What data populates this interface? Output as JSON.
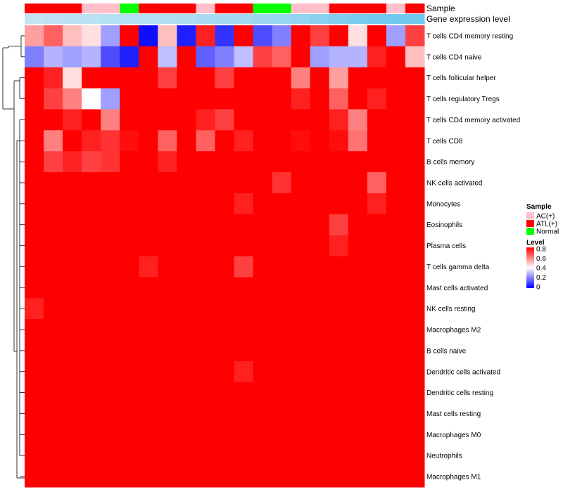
{
  "chart_data": {
    "type": "heatmap",
    "annotations": {
      "sample": {
        "label": "Sample",
        "values": [
          "ATL(+)",
          "ATL(+)",
          "ATL(+)",
          "AC(+)",
          "AC(+)",
          "Normal",
          "ATL(+)",
          "ATL(+)",
          "ATL(+)",
          "AC(+)",
          "ATL(+)",
          "ATL(+)",
          "Normal",
          "Normal",
          "AC(+)",
          "AC(+)",
          "ATL(+)",
          "ATL(+)",
          "ATL(+)",
          "AC(+)",
          "ATL(+)"
        ]
      },
      "gene_expression": {
        "label": "Gene expression level",
        "values": [
          0.95,
          0.9,
          0.85,
          0.85,
          0.8,
          0.8,
          0.8,
          0.75,
          0.7,
          0.65,
          0.6,
          0.55,
          0.5,
          0.45,
          0.4,
          0.3,
          0.2,
          0.1,
          0.05,
          0.02,
          0.0
        ]
      }
    },
    "rows": [
      {
        "name": "T cells CD4 memory resting",
        "values": [
          0.55,
          0.65,
          0.5,
          0.45,
          0.25,
          0.85,
          0.02,
          0.5,
          0.05,
          0.75,
          0.08,
          0.85,
          0.12,
          0.2,
          0.85,
          0.7,
          0.9,
          0.45,
          0.85,
          0.25,
          0.7
        ]
      },
      {
        "name": "T cells CD4 naive",
        "values": [
          0.2,
          0.28,
          0.25,
          0.28,
          0.12,
          0.05,
          0.92,
          0.3,
          0.85,
          0.15,
          0.2,
          0.3,
          0.7,
          0.65,
          0.8,
          0.25,
          0.28,
          0.28,
          0.75,
          0.85,
          0.5
        ]
      },
      {
        "name": "T cells follicular helper",
        "values": [
          0.95,
          0.75,
          0.45,
          0.85,
          0.9,
          0.95,
          0.85,
          0.7,
          0.95,
          0.8,
          0.7,
          0.95,
          0.95,
          0.95,
          0.6,
          0.95,
          0.55,
          0.8,
          0.95,
          0.95,
          0.95
        ]
      },
      {
        "name": "T cells regulatory  Tregs",
        "values": [
          0.95,
          0.7,
          0.6,
          0.4,
          0.25,
          0.95,
          0.95,
          0.8,
          0.85,
          0.8,
          0.8,
          0.9,
          0.9,
          0.95,
          0.75,
          0.95,
          0.65,
          0.8,
          0.75,
          0.95,
          0.95
        ]
      },
      {
        "name": "T cells CD4 memory activated",
        "values": [
          0.85,
          0.85,
          0.75,
          0.85,
          0.6,
          0.85,
          0.8,
          0.8,
          0.85,
          0.75,
          0.7,
          0.85,
          0.85,
          0.85,
          0.8,
          0.85,
          0.75,
          0.6,
          0.95,
          0.85,
          0.85
        ]
      },
      {
        "name": "T cells CD8",
        "values": [
          0.8,
          0.6,
          0.8,
          0.75,
          0.72,
          0.78,
          0.95,
          0.65,
          0.95,
          0.65,
          0.95,
          0.75,
          0.85,
          0.85,
          0.78,
          0.85,
          0.78,
          0.62,
          0.8,
          0.85,
          0.85
        ]
      },
      {
        "name": "B cells memory",
        "values": [
          0.95,
          0.7,
          0.75,
          0.7,
          0.72,
          0.95,
          0.9,
          0.75,
          0.95,
          0.85,
          0.95,
          0.85,
          0.95,
          0.95,
          0.85,
          0.95,
          0.85,
          0.95,
          0.85,
          0.9,
          0.85
        ]
      },
      {
        "name": "NK cells activated",
        "values": [
          0.95,
          0.85,
          0.92,
          0.85,
          0.9,
          0.95,
          0.95,
          0.85,
          0.9,
          0.85,
          0.95,
          0.8,
          0.95,
          0.72,
          0.85,
          0.95,
          0.95,
          0.95,
          0.65,
          0.95,
          0.95
        ]
      },
      {
        "name": "Monocytes",
        "values": [
          0.85,
          0.8,
          0.95,
          0.85,
          0.9,
          0.82,
          0.95,
          0.85,
          0.85,
          0.8,
          0.95,
          0.75,
          0.9,
          0.95,
          0.88,
          0.9,
          0.88,
          0.8,
          0.75,
          0.85,
          0.95
        ]
      },
      {
        "name": "Eosinophils",
        "values": [
          0.88,
          0.9,
          0.8,
          0.9,
          0.95,
          0.95,
          0.82,
          0.8,
          0.95,
          0.95,
          0.95,
          0.85,
          0.95,
          0.95,
          0.95,
          0.95,
          0.7,
          0.95,
          0.85,
          0.95,
          0.95
        ]
      },
      {
        "name": "Plasma cells",
        "values": [
          0.95,
          0.82,
          0.8,
          0.85,
          0.95,
          0.9,
          0.95,
          0.95,
          0.95,
          0.95,
          0.95,
          0.9,
          0.95,
          0.95,
          0.88,
          0.95,
          0.75,
          0.95,
          0.8,
          0.95,
          0.95
        ]
      },
      {
        "name": "T cells gamma delta",
        "values": [
          0.95,
          0.95,
          0.95,
          0.95,
          0.95,
          0.95,
          0.75,
          0.95,
          0.95,
          0.95,
          0.95,
          0.7,
          0.95,
          0.95,
          0.95,
          0.95,
          0.85,
          0.95,
          0.95,
          0.95,
          0.95
        ]
      },
      {
        "name": "Mast cells activated",
        "values": [
          0.8,
          0.82,
          0.82,
          0.95,
          0.95,
          0.85,
          0.95,
          0.82,
          0.88,
          0.95,
          0.95,
          0.82,
          0.95,
          0.85,
          0.95,
          0.85,
          0.88,
          0.95,
          0.95,
          0.95,
          0.8
        ]
      },
      {
        "name": "NK cells resting",
        "values": [
          0.75,
          0.95,
          0.95,
          0.9,
          0.8,
          0.95,
          0.95,
          0.95,
          0.95,
          0.95,
          0.95,
          0.85,
          0.82,
          0.88,
          0.95,
          0.95,
          0.95,
          0.95,
          0.95,
          0.88,
          0.95
        ]
      },
      {
        "name": "Macrophages M2",
        "values": [
          0.85,
          0.88,
          0.82,
          0.85,
          0.82,
          0.88,
          0.9,
          0.85,
          0.85,
          0.95,
          0.95,
          0.95,
          0.95,
          0.85,
          0.82,
          0.85,
          0.9,
          0.95,
          0.9,
          0.85,
          0.9
        ]
      },
      {
        "name": "B cells naive",
        "values": [
          0.8,
          0.95,
          0.95,
          0.95,
          0.95,
          0.85,
          0.95,
          0.95,
          0.85,
          0.95,
          0.95,
          0.85,
          0.95,
          0.88,
          0.85,
          0.95,
          0.85,
          0.85,
          0.95,
          0.95,
          0.95
        ]
      },
      {
        "name": "Dendritic cells activated",
        "values": [
          0.9,
          0.9,
          0.88,
          0.9,
          0.85,
          0.9,
          0.9,
          0.85,
          0.9,
          0.95,
          0.95,
          0.75,
          0.95,
          0.9,
          0.9,
          0.9,
          0.9,
          0.9,
          0.88,
          0.9,
          0.9
        ]
      },
      {
        "name": "Dendritic cells resting",
        "values": [
          0.95,
          0.92,
          0.95,
          0.88,
          0.85,
          0.95,
          0.95,
          0.95,
          0.95,
          0.95,
          0.95,
          0.95,
          0.95,
          0.95,
          0.92,
          0.95,
          0.92,
          0.9,
          0.95,
          0.95,
          0.95
        ]
      },
      {
        "name": "Mast cells resting",
        "values": [
          0.95,
          0.95,
          0.95,
          0.88,
          0.86,
          0.95,
          0.95,
          0.95,
          0.95,
          0.95,
          0.95,
          0.95,
          0.95,
          0.88,
          0.95,
          0.95,
          0.95,
          0.85,
          0.88,
          0.95,
          0.95
        ]
      },
      {
        "name": "Macrophages M0",
        "values": [
          0.95,
          0.95,
          0.95,
          0.95,
          0.88,
          0.95,
          0.95,
          0.95,
          0.95,
          0.95,
          0.95,
          0.95,
          0.95,
          0.95,
          0.95,
          0.95,
          0.88,
          0.95,
          0.9,
          0.95,
          0.95
        ]
      },
      {
        "name": "Neutrophils",
        "values": [
          0.95,
          0.92,
          0.9,
          0.95,
          0.95,
          0.95,
          0.95,
          0.95,
          0.95,
          0.95,
          0.88,
          0.95,
          0.9,
          0.9,
          0.92,
          0.95,
          0.95,
          0.95,
          0.95,
          0.95,
          0.95
        ]
      },
      {
        "name": "Macrophages M1",
        "values": [
          0.95,
          0.95,
          0.95,
          0.95,
          0.95,
          0.95,
          0.95,
          0.95,
          0.95,
          0.95,
          0.95,
          0.95,
          0.95,
          0.95,
          0.95,
          0.95,
          0.95,
          0.95,
          0.95,
          0.95,
          0.95
        ]
      }
    ],
    "row_dendrogram": "present",
    "column_clustering": "none",
    "legend_sample": {
      "title": "Sample",
      "entries": [
        {
          "label": "AC(+)",
          "color": "#ffc0cb"
        },
        {
          "label": "ATL(+)",
          "color": "#ff0000"
        },
        {
          "label": "Normal",
          "color": "#00ff00"
        }
      ]
    },
    "legend_level": {
      "title": "Level",
      "range": [
        0,
        0.8
      ],
      "ticks": [
        "0.8",
        "0.6",
        "0.4",
        "0.2",
        "0"
      ],
      "color_low": "#0000ff",
      "color_mid": "#ffffff",
      "color_high": "#ff0000"
    }
  }
}
